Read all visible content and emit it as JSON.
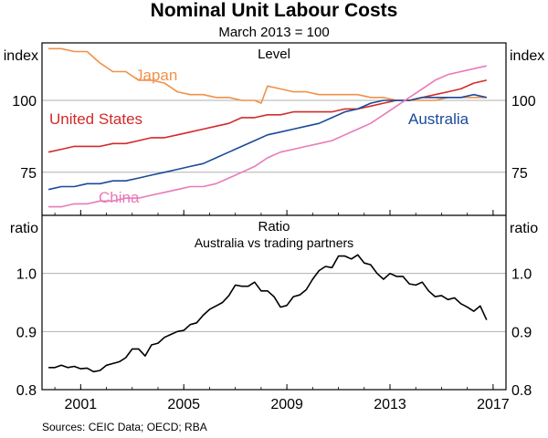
{
  "chart_data": {
    "type": "line",
    "title": "Nominal Unit Labour Costs",
    "subtitle": "March 2013 = 100",
    "source": "Sources: CEIC Data; OECD; RBA",
    "x_ticks": [
      "2001",
      "2005",
      "2009",
      "2013",
      "2017"
    ],
    "x_tick_values": [
      2001,
      2005,
      2009,
      2013,
      2017
    ],
    "xlim": [
      1999.5,
      2017.5
    ],
    "panels": [
      {
        "id": "top",
        "title": "Level",
        "subtitle": "",
        "ylabel_left": "index",
        "ylabel_right": "index",
        "ylim": [
          60,
          120
        ],
        "yticks": [
          "75",
          "100"
        ],
        "ytick_values": [
          75,
          100
        ],
        "baseline": 100,
        "series": [
          {
            "name": "Japan",
            "color": "#f0914a",
            "label_position": "top-left",
            "x": [
              1999.75,
              2000.25,
              2000.75,
              2001.25,
              2001.75,
              2002.25,
              2002.75,
              2003.25,
              2003.75,
              2004.25,
              2004.75,
              2005.25,
              2005.75,
              2006.25,
              2006.75,
              2007.25,
              2007.75,
              2008.0,
              2008.25,
              2008.75,
              2009.25,
              2009.75,
              2010.25,
              2010.75,
              2011.25,
              2011.75,
              2012.25,
              2012.75,
              2013.25,
              2013.75,
              2014.25,
              2014.75,
              2015.25,
              2015.75,
              2016.25,
              2016.75
            ],
            "y": [
              118,
              118,
              117,
              117,
              113,
              110,
              110,
              107,
              107,
              106,
              103,
              102,
              102,
              101,
              101,
              100,
              100,
              99,
              105,
              104,
              103,
              103,
              102,
              102,
              102,
              102,
              101,
              101,
              100,
              100,
              100,
              100,
              101,
              101,
              101,
              101
            ]
          },
          {
            "name": "United States",
            "color": "#d42a2a",
            "label_position": "left",
            "x": [
              1999.75,
              2000.25,
              2000.75,
              2001.25,
              2001.75,
              2002.25,
              2002.75,
              2003.25,
              2003.75,
              2004.25,
              2004.75,
              2005.25,
              2005.75,
              2006.25,
              2006.75,
              2007.25,
              2007.75,
              2008.25,
              2008.75,
              2009.25,
              2009.75,
              2010.25,
              2010.75,
              2011.25,
              2011.75,
              2012.25,
              2012.75,
              2013.25,
              2013.75,
              2014.25,
              2014.75,
              2015.25,
              2015.75,
              2016.25,
              2016.75
            ],
            "y": [
              82,
              83,
              84,
              84,
              84,
              85,
              85,
              86,
              87,
              87,
              88,
              89,
              90,
              91,
              92,
              94,
              94,
              95,
              95,
              96,
              96,
              96,
              96,
              97,
              97,
              98,
              99,
              100,
              100,
              101,
              102,
              103,
              104,
              106,
              107
            ]
          },
          {
            "name": "Australia",
            "color": "#1a4a9a",
            "label_position": "right",
            "x": [
              1999.75,
              2000.25,
              2000.75,
              2001.25,
              2001.75,
              2002.25,
              2002.75,
              2003.25,
              2003.75,
              2004.25,
              2004.75,
              2005.25,
              2005.75,
              2006.25,
              2006.75,
              2007.25,
              2007.75,
              2008.25,
              2008.75,
              2009.25,
              2009.75,
              2010.25,
              2010.75,
              2011.25,
              2011.75,
              2012.25,
              2012.75,
              2013.25,
              2013.75,
              2014.25,
              2014.75,
              2015.25,
              2015.75,
              2016.25,
              2016.75
            ],
            "y": [
              69,
              70,
              70,
              71,
              71,
              72,
              72,
              73,
              74,
              75,
              76,
              77,
              78,
              80,
              82,
              84,
              86,
              88,
              89,
              90,
              91,
              92,
              94,
              96,
              97,
              99,
              100,
              100,
              100,
              101,
              101,
              101,
              101,
              102,
              101
            ]
          },
          {
            "name": "China",
            "color": "#e87ab8",
            "label_position": "bottom",
            "x": [
              1999.75,
              2000.25,
              2000.75,
              2001.25,
              2001.75,
              2002.25,
              2002.75,
              2003.25,
              2003.75,
              2004.25,
              2004.75,
              2005.25,
              2005.75,
              2006.25,
              2006.75,
              2007.25,
              2007.75,
              2008.25,
              2008.75,
              2009.25,
              2009.75,
              2010.25,
              2010.75,
              2011.25,
              2011.75,
              2012.25,
              2012.75,
              2013.25,
              2013.75,
              2014.25,
              2014.75,
              2015.25,
              2015.75,
              2016.25,
              2016.75
            ],
            "y": [
              63,
              63,
              64,
              64,
              65,
              65,
              66,
              66,
              67,
              68,
              69,
              70,
              70,
              71,
              73,
              75,
              77,
              80,
              82,
              83,
              84,
              85,
              86,
              88,
              90,
              92,
              95,
              98,
              101,
              104,
              107,
              109,
              110,
              111,
              112
            ]
          }
        ]
      },
      {
        "id": "bottom",
        "title": "Ratio",
        "subtitle": "Australia vs trading partners",
        "ylabel_left": "ratio",
        "ylabel_right": "ratio",
        "ylim": [
          0.8,
          1.1
        ],
        "yticks": [
          "0.8",
          "0.9",
          "1.0"
        ],
        "ytick_values": [
          0.8,
          0.9,
          1.0
        ],
        "series": [
          {
            "name": "Australia vs trading partners",
            "color": "#000000",
            "x": [
              1999.75,
              2000.0,
              2000.25,
              2000.5,
              2000.75,
              2001.0,
              2001.25,
              2001.5,
              2001.75,
              2002.0,
              2002.25,
              2002.5,
              2002.75,
              2003.0,
              2003.25,
              2003.5,
              2003.75,
              2004.0,
              2004.25,
              2004.5,
              2004.75,
              2005.0,
              2005.25,
              2005.5,
              2005.75,
              2006.0,
              2006.25,
              2006.5,
              2006.75,
              2007.0,
              2007.25,
              2007.5,
              2007.75,
              2008.0,
              2008.25,
              2008.5,
              2008.75,
              2009.0,
              2009.25,
              2009.5,
              2009.75,
              2010.0,
              2010.25,
              2010.5,
              2010.75,
              2011.0,
              2011.25,
              2011.5,
              2011.75,
              2012.0,
              2012.25,
              2012.5,
              2012.75,
              2013.0,
              2013.25,
              2013.5,
              2013.75,
              2014.0,
              2014.25,
              2014.5,
              2014.75,
              2015.0,
              2015.25,
              2015.5,
              2015.75,
              2016.0,
              2016.25,
              2016.5,
              2016.75
            ],
            "y": [
              0.838,
              0.838,
              0.842,
              0.838,
              0.84,
              0.836,
              0.837,
              0.831,
              0.833,
              0.842,
              0.845,
              0.848,
              0.855,
              0.87,
              0.87,
              0.858,
              0.877,
              0.88,
              0.89,
              0.895,
              0.9,
              0.902,
              0.912,
              0.915,
              0.928,
              0.938,
              0.944,
              0.95,
              0.962,
              0.98,
              0.978,
              0.978,
              0.985,
              0.97,
              0.97,
              0.96,
              0.942,
              0.945,
              0.96,
              0.963,
              0.972,
              0.99,
              1.005,
              1.012,
              1.01,
              1.03,
              1.03,
              1.025,
              1.032,
              1.018,
              1.015,
              1.0,
              0.99,
              1.0,
              0.995,
              0.995,
              0.982,
              0.98,
              0.985,
              0.97,
              0.96,
              0.962,
              0.955,
              0.958,
              0.948,
              0.942,
              0.935,
              0.944,
              0.92
            ]
          }
        ]
      }
    ]
  }
}
